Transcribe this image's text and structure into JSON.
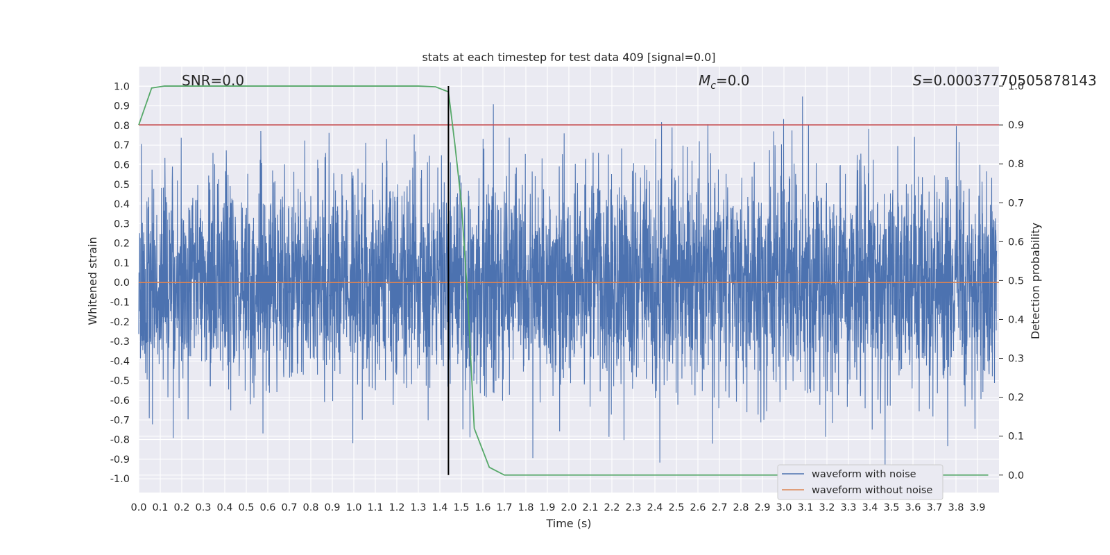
{
  "chart_data": {
    "type": "line",
    "title": "stats at each timestep for test data 409 [signal=0.0]",
    "xlabel": "Time (s)",
    "ylabel": "Whitened strain",
    "y2label": "Detection probability",
    "xlim": [
      0.0,
      4.0
    ],
    "ylim": [
      -1.07,
      1.1
    ],
    "y2lim": [
      -0.045,
      1.05
    ],
    "x_ticks": [
      "0.0",
      "0.1",
      "0.2",
      "0.3",
      "0.4",
      "0.5",
      "0.6",
      "0.7",
      "0.8",
      "0.9",
      "1.0",
      "1.1",
      "1.2",
      "1.3",
      "1.4",
      "1.5",
      "1.6",
      "1.7",
      "1.8",
      "1.9",
      "2.0",
      "2.1",
      "2.2",
      "2.3",
      "2.4",
      "2.5",
      "2.6",
      "2.7",
      "2.8",
      "2.9",
      "3.0",
      "3.1",
      "3.2",
      "3.3",
      "3.4",
      "3.5",
      "3.6",
      "3.7",
      "3.8",
      "3.9"
    ],
    "y_ticks": [
      "-1.0",
      "-0.9",
      "-0.8",
      "-0.7",
      "-0.6",
      "-0.5",
      "-0.4",
      "-0.3",
      "-0.2",
      "-0.1",
      "0.0",
      "0.1",
      "0.2",
      "0.3",
      "0.4",
      "0.5",
      "0.6",
      "0.7",
      "0.8",
      "0.9",
      "1.0"
    ],
    "y2_ticks": [
      "0.0",
      "0.1",
      "0.2",
      "0.3",
      "0.4",
      "0.5",
      "0.6",
      "0.7",
      "0.8",
      "0.9",
      "1.0"
    ],
    "grid": true,
    "legend_position": "lower-right",
    "series": [
      {
        "name": "waveform with noise",
        "color": "#4c72b0",
        "axis": "left",
        "description": "dense whitened noise, roughly ±0.3 to ±0.7 with spikes near ±0.9"
      },
      {
        "name": "waveform without noise",
        "color": "#dd8452",
        "axis": "left",
        "x": [
          0.0,
          4.0
        ],
        "y": [
          0.0,
          0.0
        ]
      },
      {
        "name": "detection probability",
        "color": "#55a868",
        "axis": "right",
        "x": [
          0.0,
          0.06,
          0.12,
          0.2,
          0.5,
          1.0,
          1.3,
          1.38,
          1.44,
          1.47,
          1.5,
          1.53,
          1.56,
          1.63,
          1.7,
          2.0,
          3.0,
          3.95
        ],
        "y": [
          0.9,
          0.995,
          1.0,
          1.0,
          1.0,
          1.0,
          1.0,
          0.998,
          0.985,
          0.85,
          0.7,
          0.45,
          0.12,
          0.02,
          0.0,
          0.0,
          0.0,
          0.0
        ]
      }
    ],
    "threshold": {
      "axis": "right",
      "value": 0.9,
      "color": "#c44e52"
    },
    "vline": {
      "x": 1.44,
      "y2_range": [
        0.0,
        1.0
      ],
      "color": "#000000"
    },
    "annotations": {
      "snr": "SNR=0.0",
      "mc_symbol": "M",
      "mc_sub": "c",
      "mc_value": "=0.0",
      "s_symbol": "S",
      "s_value": "=0.00037770505878143"
    }
  }
}
